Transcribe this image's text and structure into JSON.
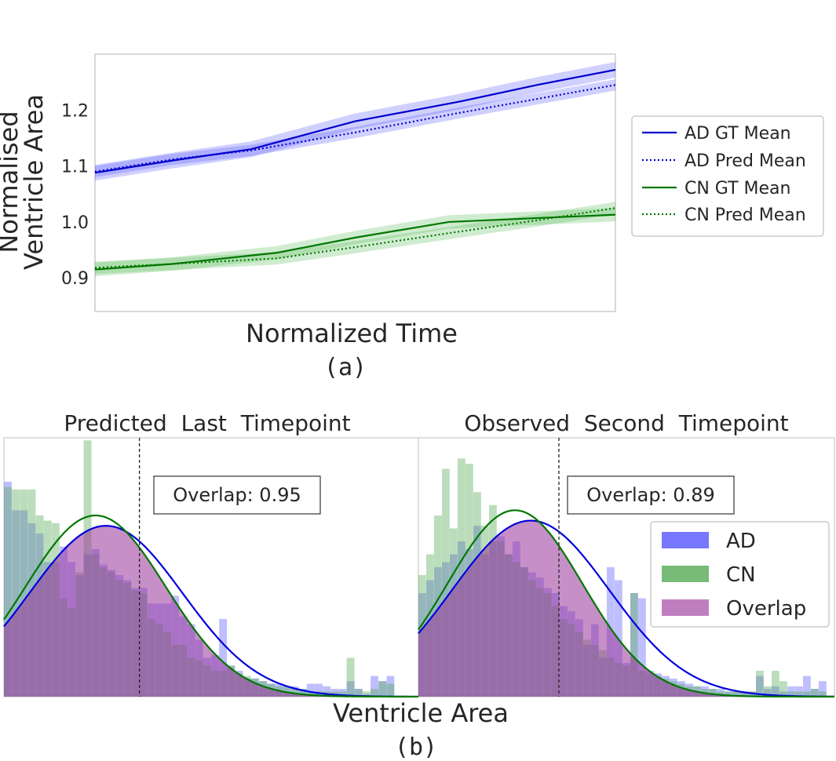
{
  "chart_data": [
    {
      "type": "line",
      "xlabel": "Normalized Time",
      "ylabel_lines": [
        "Normalised",
        "Ventricle Area"
      ],
      "caption": "(a)",
      "ylim": [
        0.84,
        1.3
      ],
      "xlim": [
        0,
        1
      ],
      "yticks": [
        0.9,
        1.0,
        1.1,
        1.2
      ],
      "ytick_labels": [
        "0.9",
        "1.0",
        "1.1",
        "1.2"
      ],
      "grid": false,
      "legend_position": "right",
      "series": [
        {
          "name": "AD GT Mean",
          "style": "solid",
          "color": "#0000cc",
          "band_color": "#5555ff",
          "x": [
            0,
            0.15,
            0.3,
            0.5,
            0.7,
            0.85,
            1.0
          ],
          "y": [
            1.088,
            1.11,
            1.13,
            1.18,
            1.215,
            1.245,
            1.272
          ],
          "band": [
            0.014,
            0.014,
            0.014,
            0.014,
            0.014,
            0.014,
            0.014
          ]
        },
        {
          "name": "AD Pred Mean",
          "style": "dotted",
          "color": "#0000cc",
          "band_color": "#5555ff",
          "x": [
            0,
            0.15,
            0.3,
            0.5,
            0.7,
            0.85,
            1.0
          ],
          "y": [
            1.09,
            1.112,
            1.128,
            1.16,
            1.195,
            1.22,
            1.245
          ],
          "band": [
            0.01,
            0.01,
            0.01,
            0.01,
            0.01,
            0.01,
            0.01
          ]
        },
        {
          "name": "CN GT Mean",
          "style": "solid",
          "color": "#007700",
          "band_color": "#55bb55",
          "x": [
            0,
            0.15,
            0.35,
            0.5,
            0.68,
            0.85,
            1.0
          ],
          "y": [
            0.915,
            0.925,
            0.945,
            0.972,
            1.0,
            1.007,
            1.013
          ],
          "band": [
            0.012,
            0.012,
            0.012,
            0.012,
            0.012,
            0.012,
            0.012
          ]
        },
        {
          "name": "CN Pred Mean",
          "style": "dotted",
          "color": "#007700",
          "band_color": "#55bb55",
          "x": [
            0,
            0.15,
            0.35,
            0.5,
            0.68,
            0.85,
            1.0
          ],
          "y": [
            0.918,
            0.925,
            0.935,
            0.955,
            0.98,
            1.003,
            1.025
          ],
          "band": [
            0.011,
            0.011,
            0.011,
            0.011,
            0.011,
            0.011,
            0.011
          ]
        }
      ]
    },
    {
      "type": "bar",
      "title_left": "Predicted  Last  Timepoint",
      "title_right": "Observed  Second  Timepoint",
      "xlabel": "Ventricle Area",
      "caption": "(b)",
      "grid": false,
      "legend_position": "lower-right",
      "legend": [
        {
          "name": "AD",
          "color": "#7777ff"
        },
        {
          "name": "CN",
          "color": "#77bb77"
        },
        {
          "name": "Overlap",
          "color": "#bf7fbf"
        }
      ],
      "panels": [
        {
          "overlap_label": "Overlap: 0.95",
          "ylim": [
            0,
            1.0
          ],
          "threshold_bin": 17.0,
          "ad": [
            0.83,
            0.72,
            0.72,
            0.67,
            0.63,
            0.52,
            0.52,
            0.58,
            0.52,
            0.47,
            0.55,
            0.57,
            0.51,
            0.49,
            0.47,
            0.45,
            0.42,
            0.42,
            0.36,
            0.36,
            0.36,
            0.39,
            0.31,
            0.28,
            0.22,
            0.15,
            0.16,
            0.3,
            0.12,
            0.1,
            0.07,
            0.07,
            0.06,
            0.05,
            0.05,
            0.04,
            0.04,
            0.03,
            0.05,
            0.05,
            0.04,
            0.03,
            0.03,
            0.06,
            0.03,
            0.01,
            0.08,
            0.06,
            0.08,
            0.0,
            0.0,
            0.0
          ],
          "cn": [
            0.81,
            0.8,
            0.8,
            0.8,
            0.7,
            0.68,
            0.67,
            0.38,
            0.34,
            0.48,
            0.99,
            0.55,
            0.5,
            0.48,
            0.45,
            0.44,
            0.41,
            0.4,
            0.3,
            0.28,
            0.25,
            0.2,
            0.2,
            0.15,
            0.14,
            0.12,
            0.1,
            0.1,
            0.12,
            0.09,
            0.08,
            0.07,
            0.06,
            0.05,
            0.04,
            0.04,
            0.03,
            0.03,
            0.02,
            0.02,
            0.02,
            0.02,
            0.02,
            0.15,
            0.03,
            0.02,
            0.03,
            0.06,
            0.05,
            0.0,
            0.0,
            0.0
          ],
          "ad_mu": 12.8,
          "ad_sigma": 9.6,
          "ad_peak": 0.66,
          "cn_mu": 11.5,
          "cn_sigma": 8.8,
          "cn_peak": 0.7
        },
        {
          "overlap_label": "Overlap: 0.89",
          "ylim": [
            0,
            1.0
          ],
          "threshold_bin": 17.0,
          "ad": [
            0.4,
            0.45,
            0.5,
            0.52,
            0.55,
            0.6,
            0.57,
            0.66,
            0.55,
            0.6,
            0.62,
            0.55,
            0.6,
            0.5,
            0.48,
            0.46,
            0.42,
            0.4,
            0.35,
            0.33,
            0.3,
            0.2,
            0.28,
            0.15,
            0.5,
            0.45,
            0.13,
            0.4,
            0.38,
            0.1,
            0.09,
            0.08,
            0.07,
            0.06,
            0.05,
            0.04,
            0.04,
            0.03,
            0.03,
            0.02,
            0.02,
            0.02,
            0.02,
            0.08,
            0.03,
            0.04,
            0.02,
            0.04,
            0.04,
            0.08,
            0.03,
            0.06,
            0.0
          ],
          "cn": [
            0.47,
            0.55,
            0.7,
            0.88,
            0.65,
            0.92,
            0.9,
            0.79,
            0.66,
            0.74,
            0.6,
            0.55,
            0.52,
            0.5,
            0.45,
            0.42,
            0.4,
            0.35,
            0.3,
            0.28,
            0.25,
            0.22,
            0.2,
            0.18,
            0.15,
            0.13,
            0.12,
            0.4,
            0.1,
            0.09,
            0.08,
            0.07,
            0.06,
            0.05,
            0.04,
            0.04,
            0.03,
            0.03,
            0.02,
            0.02,
            0.02,
            0.02,
            0.02,
            0.1,
            0.04,
            0.1,
            0.06,
            0.02,
            0.02,
            0.02,
            0.03,
            0.02,
            0.0
          ],
          "ad_mu": 14.3,
          "ad_sigma": 10.0,
          "ad_peak": 0.68,
          "cn_mu": 12.3,
          "cn_sigma": 8.6,
          "cn_peak": 0.72
        }
      ]
    }
  ]
}
